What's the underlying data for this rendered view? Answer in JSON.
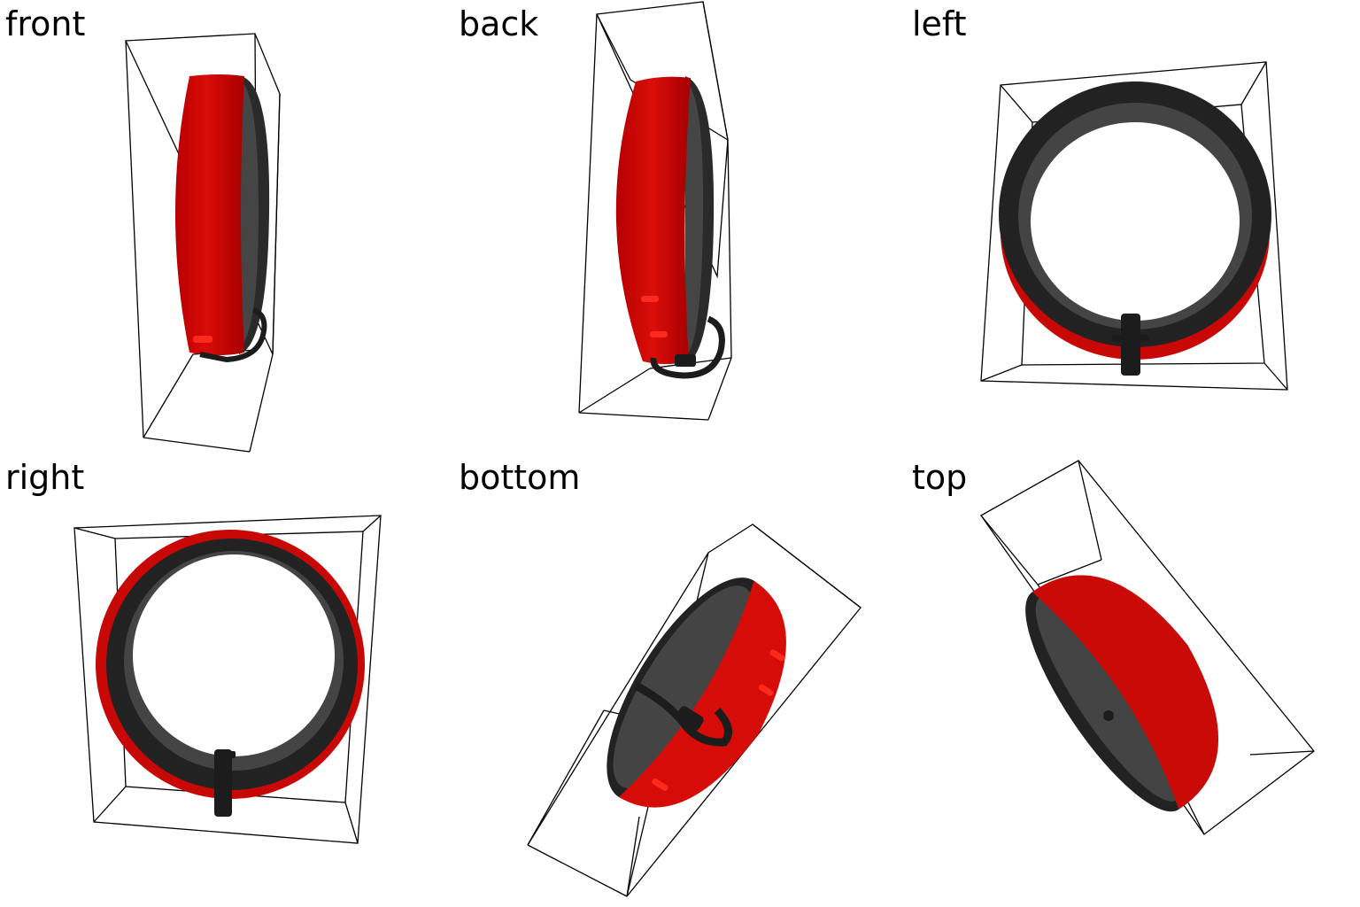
{
  "views": [
    {
      "label": "front"
    },
    {
      "label": "back"
    },
    {
      "label": "left"
    },
    {
      "label": "right"
    },
    {
      "label": "bottom"
    },
    {
      "label": "top"
    }
  ],
  "colors": {
    "band_red": "#d00a06",
    "band_red_dark": "#a80000",
    "band_red_light": "#e8281c",
    "liner_dark": "#2a2a2a",
    "liner_mid": "#444444",
    "buckle": "#1c1c1c",
    "box_line": "#000000",
    "background": "#ffffff"
  },
  "object": "red-bracelet-with-black-liner-and-ring-clip"
}
